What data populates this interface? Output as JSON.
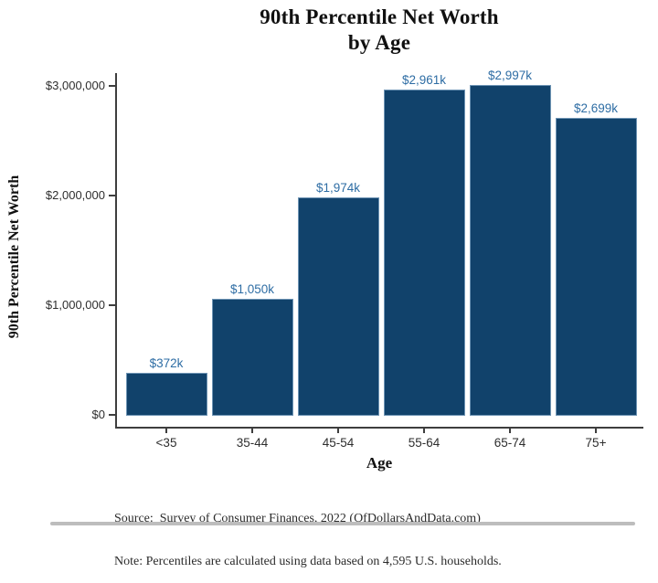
{
  "chart_data": {
    "type": "bar",
    "title_lines": [
      "90th Percentile Net Worth",
      "by Age"
    ],
    "xlabel": "Age",
    "ylabel": "90th Percentile Net Worth",
    "categories": [
      "<35",
      "35-44",
      "45-54",
      "55-64",
      "65-74",
      "75+"
    ],
    "values": [
      372000,
      1050000,
      1974000,
      2961000,
      2997000,
      2699000
    ],
    "bar_labels": [
      "$372k",
      "$1,050k",
      "$1,974k",
      "$2,961k",
      "$2,997k",
      "$2,699k"
    ],
    "y_ticks": [
      {
        "value": 0,
        "label": "$0"
      },
      {
        "value": 1000000,
        "label": "$1,000,000"
      },
      {
        "value": 2000000,
        "label": "$2,000,000"
      },
      {
        "value": 3000000,
        "label": "$3,000,000"
      }
    ],
    "ylim": [
      0,
      3100000
    ],
    "grid": false,
    "legend": "none",
    "colors": {
      "bar_fill": "#11426B",
      "bar_edge": "#6E94B4",
      "bar_label": "#2E6DA4",
      "axis": "#3E3E3E",
      "tick_label": "#2E2E2E",
      "title": "#101010",
      "caption": "#2B2B2B"
    }
  },
  "caption": {
    "source_line": "Source:  Survey of Consumer Finances, 2022 (OfDollarsAndData.com)",
    "note_line": "Note: Percentiles are calculated using data based on 4,595 U.S. households."
  }
}
